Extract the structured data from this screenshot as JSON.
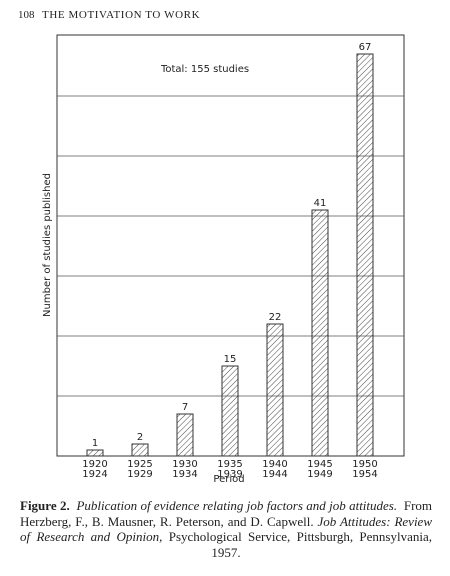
{
  "page": {
    "number": "108",
    "running_head": "THE MOTIVATION TO WORK"
  },
  "chart_data": {
    "type": "bar",
    "annotation": "Total: 155 studies",
    "y_label": "Number of studies published",
    "x_label": "Period",
    "categories": [
      [
        "1920",
        "1924"
      ],
      [
        "1925",
        "1929"
      ],
      [
        "1930",
        "1934"
      ],
      [
        "1935",
        "1939"
      ],
      [
        "1940",
        "1944"
      ],
      [
        "1945",
        "1949"
      ],
      [
        "1950",
        "1954"
      ]
    ],
    "values": [
      1,
      2,
      7,
      15,
      22,
      41,
      67
    ],
    "color": "#333333",
    "ylim": [
      0,
      70
    ],
    "yticks": [
      10,
      20,
      30,
      40,
      50,
      60
    ],
    "grid": true
  },
  "caption": {
    "label": "Figure 2.",
    "title": "Publication of evidence relating job factors and job attitudes.",
    "source": "From Herzberg, F., B. Mausner, R. Peterson, and D. Capwell.",
    "book": "Job Attitudes: Review of Research and Opinion,",
    "publisher": "Psychological Service, Pittsburgh, Pennsylvania, 1957."
  }
}
